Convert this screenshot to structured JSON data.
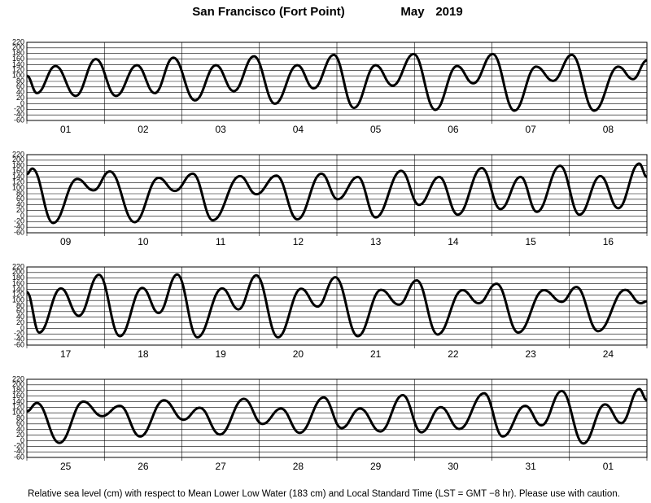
{
  "title": "San Francisco (Fort Point)",
  "month": "May",
  "year": "2019",
  "note": "Relative sea level (cm) with respect to Mean Lower Low Water (183 cm) and Local Standard Time (LST = GMT −8 hr). Please use with caution.",
  "chart_data": [
    {
      "type": "line",
      "categories": [
        "01",
        "02",
        "03",
        "04",
        "05",
        "06",
        "07",
        "08"
      ],
      "xlim": [
        0,
        8
      ],
      "xticks": [
        0,
        1,
        2,
        3,
        4,
        5,
        6,
        7,
        8
      ],
      "ylim": [
        -60,
        220
      ],
      "yticks": [
        220,
        200,
        180,
        160,
        140,
        120,
        100,
        80,
        60,
        40,
        20,
        0,
        -20,
        -40,
        -60
      ],
      "grid": true,
      "color": "#000000",
      "x": [
        0,
        0.13,
        0.37,
        0.63,
        0.89,
        1.15,
        1.42,
        1.65,
        1.89,
        2.17,
        2.44,
        2.67,
        2.93,
        3.2,
        3.49,
        3.7,
        3.96,
        4.22,
        4.5,
        4.72,
        4.99,
        5.27,
        5.55,
        5.76,
        6.01,
        6.29,
        6.57,
        6.79,
        7.03,
        7.32,
        7.63,
        7.82,
        8
      ],
      "values": [
        100,
        38,
        135,
        28,
        160,
        28,
        138,
        38,
        165,
        12,
        138,
        45,
        170,
        0,
        138,
        55,
        175,
        -15,
        138,
        65,
        178,
        -22,
        135,
        73,
        178,
        -25,
        133,
        82,
        175,
        -25,
        133,
        88,
        155
      ]
    },
    {
      "type": "line",
      "categories": [
        "09",
        "10",
        "11",
        "12",
        "13",
        "14",
        "15",
        "16"
      ],
      "xlim": [
        0,
        8
      ],
      "xticks": [
        0,
        1,
        2,
        3,
        4,
        5,
        6,
        7,
        8
      ],
      "ylim": [
        -60,
        220
      ],
      "yticks": [
        220,
        200,
        180,
        160,
        140,
        120,
        100,
        80,
        60,
        40,
        20,
        0,
        -20,
        -40,
        -60
      ],
      "grid": true,
      "color": "#000000",
      "x": [
        0,
        0.07,
        0.34,
        0.65,
        0.86,
        1.07,
        1.39,
        1.7,
        1.91,
        2.14,
        2.4,
        2.75,
        2.96,
        3.22,
        3.49,
        3.8,
        4.01,
        4.27,
        4.5,
        4.83,
        5.06,
        5.32,
        5.56,
        5.87,
        6.11,
        6.37,
        6.58,
        6.88,
        7.13,
        7.4,
        7.63,
        7.9,
        8
      ],
      "values": [
        150,
        170,
        -25,
        133,
        92,
        160,
        -22,
        137,
        90,
        152,
        -15,
        143,
        78,
        145,
        -12,
        152,
        60,
        140,
        -5,
        162,
        40,
        140,
        5,
        172,
        25,
        140,
        15,
        180,
        5,
        143,
        28,
        188,
        140
      ]
    },
    {
      "type": "line",
      "categories": [
        "17",
        "18",
        "19",
        "20",
        "21",
        "22",
        "23",
        "24"
      ],
      "xlim": [
        0,
        8
      ],
      "xticks": [
        0,
        1,
        2,
        3,
        4,
        5,
        6,
        7,
        8
      ],
      "ylim": [
        -60,
        220
      ],
      "yticks": [
        220,
        200,
        180,
        160,
        140,
        120,
        100,
        80,
        60,
        40,
        20,
        0,
        -20,
        -40,
        -60
      ],
      "grid": true,
      "color": "#000000",
      "x": [
        0,
        0.16,
        0.44,
        0.67,
        0.93,
        1.2,
        1.49,
        1.7,
        1.94,
        2.2,
        2.52,
        2.73,
        2.96,
        3.24,
        3.54,
        3.75,
        3.98,
        4.27,
        4.57,
        4.8,
        5.03,
        5.3,
        5.62,
        5.83,
        6.06,
        6.34,
        6.67,
        6.9,
        7.09,
        7.37,
        7.72,
        7.92,
        8
      ],
      "values": [
        130,
        -15,
        143,
        45,
        192,
        -28,
        145,
        55,
        193,
        -32,
        143,
        68,
        190,
        -32,
        142,
        78,
        183,
        -28,
        138,
        85,
        172,
        -22,
        137,
        90,
        160,
        -15,
        137,
        95,
        148,
        -10,
        138,
        90,
        97
      ]
    },
    {
      "type": "line",
      "categories": [
        "25",
        "26",
        "27",
        "28",
        "29",
        "30",
        "31",
        "01"
      ],
      "xlim": [
        0,
        8
      ],
      "xticks": [
        0,
        1,
        2,
        3,
        4,
        5,
        6,
        7,
        8
      ],
      "ylim": [
        -60,
        220
      ],
      "yticks": [
        220,
        200,
        180,
        160,
        140,
        120,
        100,
        80,
        60,
        40,
        20,
        0,
        -20,
        -40,
        -60
      ],
      "grid": true,
      "color": "#000000",
      "x": [
        0,
        0.13,
        0.42,
        0.73,
        0.97,
        1.2,
        1.46,
        1.77,
        2.02,
        2.23,
        2.49,
        2.8,
        3.04,
        3.28,
        3.52,
        3.83,
        4.06,
        4.3,
        4.56,
        4.85,
        5.09,
        5.34,
        5.58,
        5.9,
        6.14,
        6.43,
        6.64,
        6.9,
        7.18,
        7.46,
        7.67,
        7.9,
        8
      ],
      "values": [
        105,
        135,
        -8,
        140,
        88,
        125,
        15,
        145,
        75,
        118,
        22,
        150,
        60,
        115,
        28,
        155,
        45,
        115,
        33,
        163,
        30,
        120,
        42,
        170,
        15,
        125,
        55,
        178,
        -10,
        130,
        63,
        185,
        145
      ]
    }
  ]
}
